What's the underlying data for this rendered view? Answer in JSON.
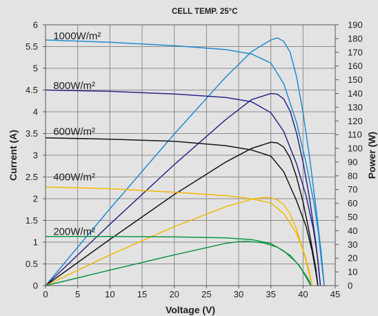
{
  "chart_data": {
    "type": "line",
    "title": "CELL TEMP. 25°C",
    "xlabel": "Voltage (V)",
    "ylabel": "Current (A)",
    "y2label": "Power (W)",
    "xlim": [
      0,
      45
    ],
    "ylim": [
      0,
      6
    ],
    "y2lim": [
      0,
      190
    ],
    "x_ticks": [
      0,
      5,
      10,
      15,
      20,
      25,
      30,
      35,
      40,
      45
    ],
    "y_ticks": [
      0,
      0.5,
      1,
      1.5,
      2,
      2.5,
      3,
      3.5,
      4,
      4.5,
      5,
      5.5,
      6
    ],
    "y2_ticks": [
      0,
      10,
      20,
      30,
      40,
      50,
      60,
      70,
      80,
      90,
      100,
      110,
      120,
      130,
      140,
      150,
      160,
      170,
      180,
      190
    ],
    "grid": true,
    "series": [
      {
        "name": "1000W/m²",
        "color": "#1f8bd0",
        "label_at": [
          1.2,
          5.75
        ],
        "iv": [
          [
            0,
            5.65
          ],
          [
            10,
            5.6
          ],
          [
            20,
            5.52
          ],
          [
            28,
            5.43
          ],
          [
            32,
            5.33
          ],
          [
            35,
            5.12
          ],
          [
            37,
            4.65
          ],
          [
            39,
            3.75
          ],
          [
            40.5,
            2.8
          ],
          [
            41.7,
            1.9
          ],
          [
            42.4,
            1.2
          ],
          [
            42.9,
            0.5
          ],
          [
            43.3,
            0
          ]
        ],
        "pv": [
          [
            0,
            0
          ],
          [
            10,
            56
          ],
          [
            20,
            110.5
          ],
          [
            28,
            152
          ],
          [
            32,
            170.5
          ],
          [
            35,
            179
          ],
          [
            36,
            180.5
          ],
          [
            37,
            178
          ],
          [
            38,
            170
          ],
          [
            39,
            152
          ],
          [
            40,
            126
          ],
          [
            41,
            94
          ],
          [
            42,
            57
          ],
          [
            42.8,
            25
          ],
          [
            43.3,
            0
          ]
        ]
      },
      {
        "name": "800W/m²",
        "color": "#2a2785",
        "label_at": [
          1.2,
          4.6
        ],
        "iv": [
          [
            0,
            4.5
          ],
          [
            10,
            4.47
          ],
          [
            20,
            4.41
          ],
          [
            28,
            4.33
          ],
          [
            32,
            4.23
          ],
          [
            35,
            3.98
          ],
          [
            37,
            3.55
          ],
          [
            39,
            2.8
          ],
          [
            40.5,
            2.05
          ],
          [
            41.6,
            1.3
          ],
          [
            42.3,
            0.6
          ],
          [
            42.7,
            0
          ]
        ],
        "pv": [
          [
            0,
            0
          ],
          [
            10,
            44.7
          ],
          [
            20,
            88.2
          ],
          [
            28,
            121
          ],
          [
            32,
            135.5
          ],
          [
            35,
            140
          ],
          [
            36,
            139.5
          ],
          [
            37,
            136
          ],
          [
            38,
            127
          ],
          [
            39,
            111
          ],
          [
            40,
            90
          ],
          [
            41,
            64
          ],
          [
            42,
            31
          ],
          [
            42.7,
            0
          ]
        ]
      },
      {
        "name": "600W/m²",
        "color": "#141414",
        "label_at": [
          1.2,
          3.55
        ],
        "iv": [
          [
            0,
            3.4
          ],
          [
            10,
            3.37
          ],
          [
            20,
            3.32
          ],
          [
            28,
            3.22
          ],
          [
            32,
            3.12
          ],
          [
            35,
            2.98
          ],
          [
            37,
            2.62
          ],
          [
            39,
            1.95
          ],
          [
            40.5,
            1.35
          ],
          [
            41.4,
            0.8
          ],
          [
            42,
            0.3
          ],
          [
            42.3,
            0
          ]
        ],
        "pv": [
          [
            0,
            0
          ],
          [
            10,
            33.7
          ],
          [
            20,
            66.4
          ],
          [
            28,
            90
          ],
          [
            32,
            100
          ],
          [
            35,
            104.5
          ],
          [
            36,
            104
          ],
          [
            37,
            101
          ],
          [
            38,
            93
          ],
          [
            39,
            79
          ],
          [
            40,
            61
          ],
          [
            41,
            38
          ],
          [
            42,
            12
          ],
          [
            42.3,
            0
          ]
        ]
      },
      {
        "name": "400W/m²",
        "color": "#f4b800",
        "label_at": [
          1.2,
          2.5
        ],
        "iv": [
          [
            0,
            2.27
          ],
          [
            10,
            2.23
          ],
          [
            20,
            2.15
          ],
          [
            28,
            2.07
          ],
          [
            32,
            2.0
          ],
          [
            35,
            1.9
          ],
          [
            37,
            1.66
          ],
          [
            39,
            1.2
          ],
          [
            40.3,
            0.7
          ],
          [
            41,
            0.3
          ],
          [
            41.4,
            0
          ]
        ],
        "pv": [
          [
            0,
            0
          ],
          [
            10,
            22.3
          ],
          [
            20,
            43
          ],
          [
            28,
            57.5
          ],
          [
            32,
            63
          ],
          [
            34,
            64.3
          ],
          [
            35,
            64
          ],
          [
            36,
            62.5
          ],
          [
            37,
            59
          ],
          [
            38,
            52
          ],
          [
            39,
            41
          ],
          [
            40,
            26
          ],
          [
            41,
            8
          ],
          [
            41.4,
            0
          ]
        ]
      },
      {
        "name": "200W/m²",
        "color": "#0e9444",
        "label_at": [
          1.2,
          1.25
        ],
        "iv": [
          [
            0,
            1.13
          ],
          [
            10,
            1.13
          ],
          [
            20,
            1.12
          ],
          [
            28,
            1.1
          ],
          [
            32,
            1.06
          ],
          [
            35,
            0.97
          ],
          [
            37,
            0.8
          ],
          [
            39,
            0.53
          ],
          [
            40.3,
            0.27
          ],
          [
            41,
            0.1
          ],
          [
            41.2,
            0
          ]
        ],
        "pv": [
          [
            0,
            0
          ],
          [
            10,
            11.3
          ],
          [
            20,
            22.4
          ],
          [
            28,
            30.8
          ],
          [
            30,
            32
          ],
          [
            31,
            32.2
          ],
          [
            32,
            32
          ],
          [
            34,
            31
          ],
          [
            36,
            28
          ],
          [
            38,
            22
          ],
          [
            39.5,
            14
          ],
          [
            40.5,
            6
          ],
          [
            41.2,
            0
          ]
        ]
      }
    ]
  }
}
